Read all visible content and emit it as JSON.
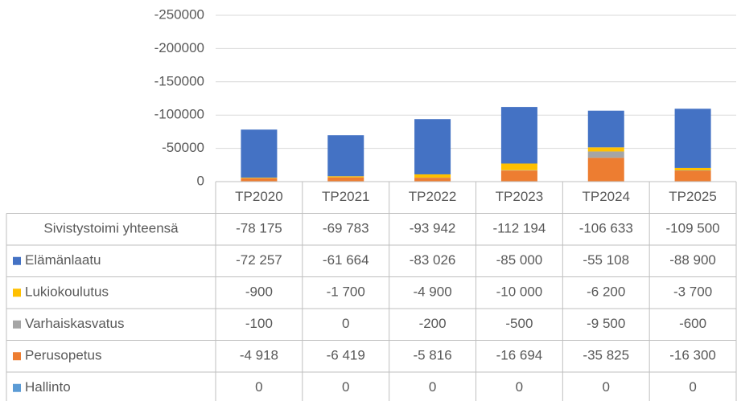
{
  "chart_data": {
    "type": "stacked_bar_table",
    "categories": [
      "TP2020",
      "TP2021",
      "TP2022",
      "TP2023",
      "TP2024",
      "TP2025"
    ],
    "ylim": [
      0,
      -250000
    ],
    "yticks": [
      0,
      -50000,
      -100000,
      -150000,
      -200000,
      -250000
    ],
    "grid": true,
    "total": {
      "name": "Sivistystoimi yhteensä",
      "values": [
        -78175,
        -69783,
        -93942,
        -112194,
        -106633,
        -109500
      ],
      "value_labels": [
        "-78 175",
        "-69 783",
        "-93 942",
        "-112 194",
        "-106 633",
        "-109 500"
      ]
    },
    "series": [
      {
        "name": "Elämänlaatu",
        "color": "#4472c4",
        "values": [
          -72257,
          -61664,
          -83026,
          -85000,
          -55108,
          -88900
        ],
        "value_labels": [
          "-72 257",
          "-61 664",
          "-83 026",
          "-85 000",
          "-55 108",
          "-88 900"
        ]
      },
      {
        "name": "Lukiokoulutus",
        "color": "#ffc000",
        "values": [
          -900,
          -1700,
          -4900,
          -10000,
          -6200,
          -3700
        ],
        "value_labels": [
          "-900",
          "-1 700",
          "-4 900",
          "-10 000",
          "-6 200",
          "-3 700"
        ]
      },
      {
        "name": "Varhaiskasvatus",
        "color": "#a5a5a5",
        "values": [
          -100,
          0,
          -200,
          -500,
          -9500,
          -600
        ],
        "value_labels": [
          "-100",
          "0",
          "-200",
          "-500",
          "-9 500",
          "-600"
        ]
      },
      {
        "name": "Perusopetus",
        "color": "#ed7d31",
        "values": [
          -4918,
          -6419,
          -5816,
          -16694,
          -35825,
          -16300
        ],
        "value_labels": [
          "-4 918",
          "-6 419",
          "-5 816",
          "-16 694",
          "-35 825",
          "-16 300"
        ]
      },
      {
        "name": "Hallinto",
        "color": "#5b9bd5",
        "values": [
          0,
          0,
          0,
          0,
          0,
          0
        ],
        "value_labels": [
          "0",
          "0",
          "0",
          "0",
          "0",
          "0"
        ]
      }
    ]
  }
}
